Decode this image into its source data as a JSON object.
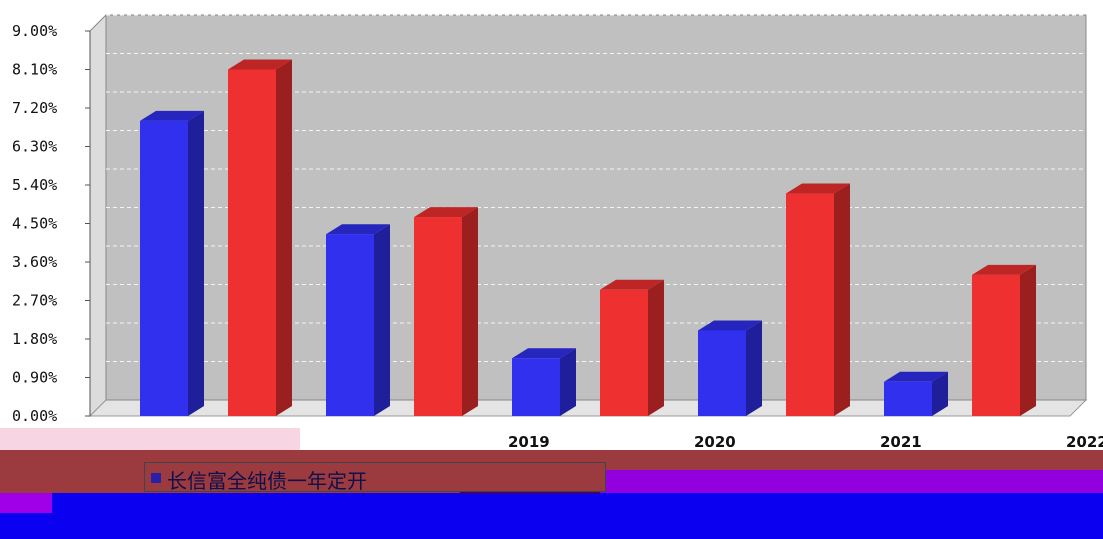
{
  "chart_data": {
    "type": "bar",
    "categories": [
      "",
      "",
      "2019",
      "2020",
      "2021",
      "2022"
    ],
    "series": [
      {
        "name": "长信富全纯债一年定开",
        "color": "#3030ee",
        "values": [
          6.9,
          4.25,
          1.35,
          2.0,
          0.8,
          null
        ]
      },
      {
        "name": "",
        "color": "#ee3030",
        "values": [
          8.1,
          4.65,
          2.95,
          5.2,
          3.3,
          null
        ]
      }
    ],
    "y_ticks": [
      "0.00%",
      "0.90%",
      "1.80%",
      "2.70%",
      "3.60%",
      "4.50%",
      "5.40%",
      "6.30%",
      "7.20%",
      "8.10%",
      "9.00%"
    ],
    "ylim": [
      0,
      9.0
    ],
    "grid": true,
    "title": "",
    "xlabel": "",
    "ylabel": ""
  }
}
